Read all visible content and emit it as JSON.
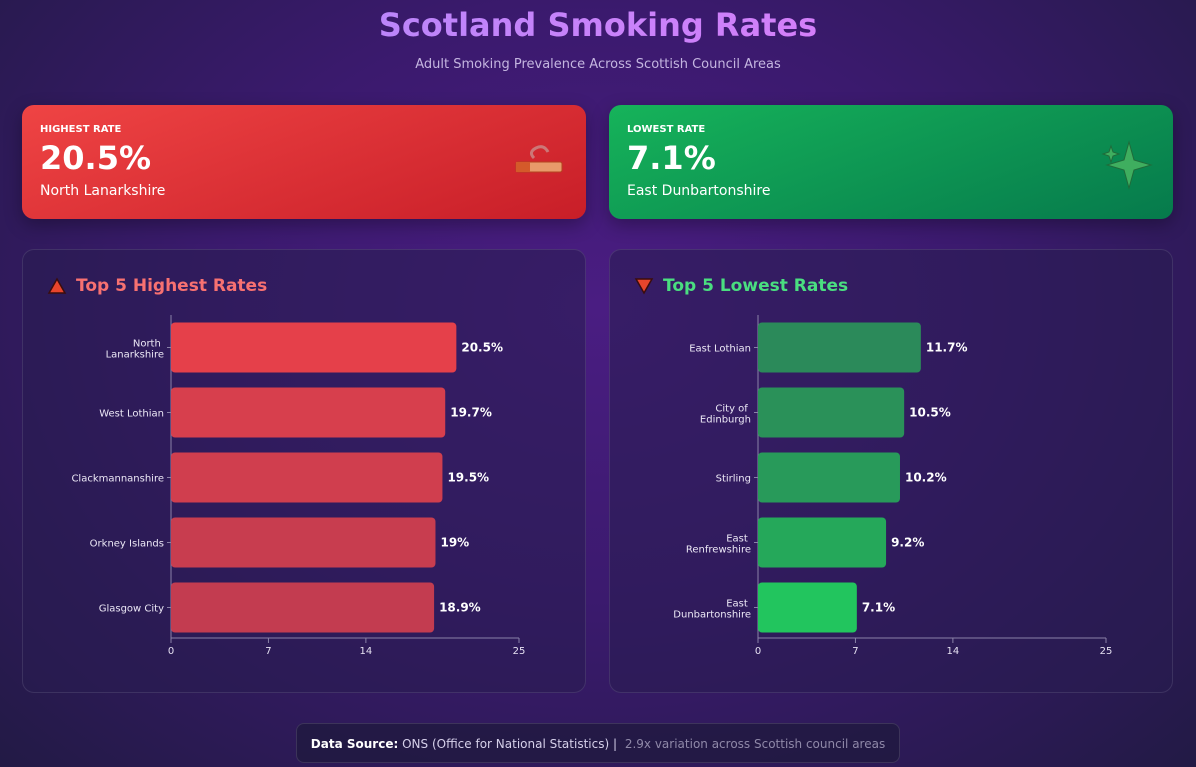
{
  "header": {
    "title": "Scotland Smoking Rates",
    "subtitle": "Adult Smoking Prevalence Across Scottish Council Areas"
  },
  "cards": [
    {
      "label": "HIGHEST RATE",
      "value": "20.5%",
      "area": "North Lanarkshire"
    },
    {
      "label": "LOWEST RATE",
      "value": "7.1%",
      "area": "East Dunbartonshire"
    }
  ],
  "chart_data": [
    {
      "type": "hbar",
      "title": "Top 5 Highest Rates",
      "categories": [
        "North Lanarkshire",
        "West Lothian",
        "Clackmannanshire",
        "Orkney Islands",
        "Glasgow City"
      ],
      "values": [
        20.5,
        19.7,
        19.5,
        19,
        18.9
      ],
      "value_labels": [
        "20.5%",
        "19.7%",
        "19.5%",
        "19%",
        "18.9%"
      ],
      "colors": [
        "#e5404a",
        "#d73f4d",
        "#d03e4e",
        "#c83d4f",
        "#c33c50"
      ],
      "title_color": "#f87171",
      "xlim": [
        0,
        25
      ],
      "xticks": [
        0,
        7,
        14,
        25
      ]
    },
    {
      "type": "hbar",
      "title": "Top 5 Lowest Rates",
      "categories": [
        "East Lothian",
        "City of Edinburgh",
        "Stirling",
        "East Renfrewshire",
        "East Dunbartonshire"
      ],
      "values": [
        11.7,
        10.5,
        10.2,
        9.2,
        7.1
      ],
      "value_labels": [
        "11.7%",
        "10.5%",
        "10.2%",
        "9.2%",
        "7.1%"
      ],
      "colors": [
        "#2b8a5a",
        "#2a9159",
        "#289a5a",
        "#25a85a",
        "#22c55e"
      ],
      "title_color": "#4ade80",
      "xlim": [
        0,
        25
      ],
      "xticks": [
        0,
        7,
        14,
        25
      ]
    }
  ],
  "footer": {
    "label": "Data Source:",
    "source": "ONS (Office for National Statistics) |",
    "note": "2.9x variation across Scottish council areas"
  }
}
